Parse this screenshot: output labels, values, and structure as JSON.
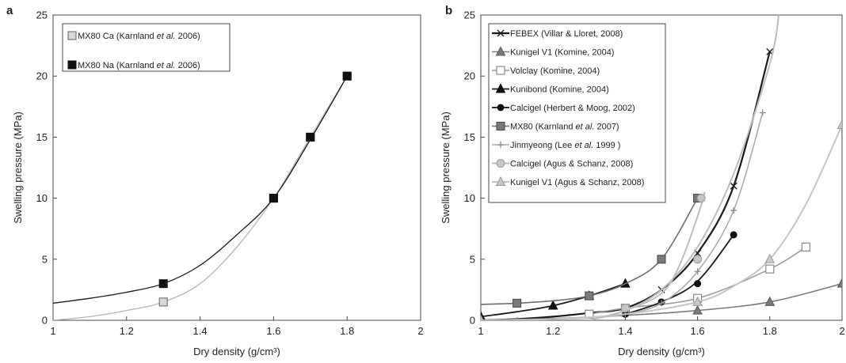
{
  "chart_data": [
    {
      "type": "line",
      "panel_label": "a",
      "xlabel": "Dry density (g/cm³)",
      "ylabel": "Swelling pressure (MPa)",
      "xlim": [
        1,
        2
      ],
      "ylim": [
        0,
        25
      ],
      "x_ticks": [
        1,
        1.2,
        1.4,
        1.6,
        1.8,
        2
      ],
      "y_ticks": [
        0,
        5,
        10,
        15,
        20,
        25
      ],
      "grid": false,
      "legend_position": "top-left",
      "series": [
        {
          "name": "MX80 Ca (Karnland et al. 2006)",
          "legend_parts": [
            "MX80 Ca (Karnland ",
            "et al.",
            " 2006)"
          ],
          "marker": "square-open-gray",
          "color": "#b4b4b4",
          "points": [
            [
              1.3,
              1.5
            ],
            [
              1.6,
              10
            ],
            [
              1.7,
              15
            ],
            [
              1.8,
              20
            ]
          ],
          "fit": [
            [
              1.0,
              0.0
            ],
            [
              1.1,
              0.3
            ],
            [
              1.2,
              0.8
            ],
            [
              1.3,
              1.5
            ],
            [
              1.4,
              3.0
            ],
            [
              1.5,
              6.0
            ],
            [
              1.6,
              10.0
            ],
            [
              1.7,
              15.0
            ],
            [
              1.8,
              20.0
            ]
          ]
        },
        {
          "name": "MX80 Na (Karnland et al. 2006)",
          "legend_parts": [
            "MX80 Na (Karnland ",
            "et al.",
            " 2006)"
          ],
          "marker": "square-filled-black",
          "color": "#1a1a1a",
          "points": [
            [
              1.3,
              3.0
            ],
            [
              1.6,
              10
            ],
            [
              1.7,
              15
            ],
            [
              1.8,
              20
            ]
          ],
          "fit": [
            [
              1.0,
              1.4
            ],
            [
              1.1,
              1.8
            ],
            [
              1.2,
              2.3
            ],
            [
              1.3,
              3.0
            ],
            [
              1.4,
              4.5
            ],
            [
              1.5,
              7.0
            ],
            [
              1.6,
              10.0
            ],
            [
              1.7,
              14.8
            ],
            [
              1.8,
              20.0
            ]
          ]
        }
      ]
    },
    {
      "type": "line",
      "panel_label": "b",
      "xlabel": "Dry density (g/cm³)",
      "ylabel": "Swelling pressure (MPa)",
      "xlim": [
        1,
        2
      ],
      "ylim": [
        0,
        25
      ],
      "x_ticks": [
        1,
        1.2,
        1.4,
        1.6,
        1.8,
        2
      ],
      "y_ticks": [
        0,
        5,
        10,
        15,
        20,
        25
      ],
      "grid": false,
      "legend_position": "top-left",
      "series": [
        {
          "name": "FEBEX (Villar & Lloret, 2008)",
          "legend_parts": [
            "FEBEX (Villar & Lloret, 2008)"
          ],
          "marker": "x",
          "color": "#1a1a1a",
          "width": 2.2,
          "points": [
            [
              1.3,
              0.6
            ],
            [
              1.4,
              1.0
            ],
            [
              1.5,
              2.5
            ],
            [
              1.6,
              5.5
            ],
            [
              1.7,
              11.0
            ],
            [
              1.8,
              22.0
            ]
          ],
          "curve": [
            [
              1.0,
              0.0
            ],
            [
              1.1,
              0.1
            ],
            [
              1.2,
              0.3
            ],
            [
              1.3,
              0.6
            ],
            [
              1.4,
              1.0
            ],
            [
              1.5,
              2.5
            ],
            [
              1.6,
              5.5
            ],
            [
              1.7,
              11.0
            ],
            [
              1.8,
              22.0
            ]
          ]
        },
        {
          "name": "Kunigel V1 (Komine, 2004)",
          "legend_parts": [
            "Kunigel V1 (Komine, 2004)"
          ],
          "marker": "triangle-filled-gray",
          "color": "#7a7a7a",
          "width": 1.6,
          "points": [
            [
              1.0,
              0.0
            ],
            [
              1.6,
              0.8
            ],
            [
              1.8,
              1.5
            ],
            [
              2.0,
              3.0
            ]
          ],
          "curve": [
            [
              1.0,
              0.0
            ],
            [
              1.2,
              0.15
            ],
            [
              1.4,
              0.4
            ],
            [
              1.6,
              0.8
            ],
            [
              1.8,
              1.5
            ],
            [
              2.0,
              3.0
            ]
          ]
        },
        {
          "name": "Volclay (Komine, 2004)",
          "legend_parts": [
            "Volclay (Komine, 2004)"
          ],
          "marker": "square-open",
          "color": "#9a9a9a",
          "width": 1.6,
          "points": [
            [
              1.3,
              0.5
            ],
            [
              1.4,
              1.0
            ],
            [
              1.6,
              1.8
            ],
            [
              1.8,
              4.2
            ],
            [
              1.9,
              6.0
            ]
          ],
          "curve": [
            [
              1.3,
              0.5
            ],
            [
              1.4,
              1.0
            ],
            [
              1.6,
              1.8
            ],
            [
              1.8,
              4.2
            ],
            [
              1.9,
              6.0
            ]
          ]
        },
        {
          "name": "Kunibond (Komine, 2004)",
          "legend_parts": [
            "Kunibond (Komine, 2004)"
          ],
          "marker": "triangle-filled-black",
          "color": "#1a1a1a",
          "width": 1.8,
          "points": [
            [
              1.0,
              0.3
            ],
            [
              1.2,
              1.2
            ],
            [
              1.3,
              2.0
            ],
            [
              1.4,
              3.0
            ]
          ],
          "curve": [
            [
              1.0,
              0.3
            ],
            [
              1.1,
              0.7
            ],
            [
              1.2,
              1.2
            ],
            [
              1.3,
              2.0
            ],
            [
              1.4,
              3.0
            ]
          ]
        },
        {
          "name": "Calcigel (Herbert & Moog, 2002)",
          "legend_parts": [
            "Calcigel (Herbert & Moog, 2002)"
          ],
          "marker": "circle-filled-black",
          "color": "#1a1a1a",
          "width": 1.8,
          "points": [
            [
              1.4,
              0.5
            ],
            [
              1.5,
              1.5
            ],
            [
              1.6,
              3.0
            ],
            [
              1.7,
              7.0
            ]
          ],
          "curve": [
            [
              1.4,
              0.5
            ],
            [
              1.5,
              1.5
            ],
            [
              1.6,
              3.2
            ],
            [
              1.7,
              7.0
            ]
          ]
        },
        {
          "name": "MX80 (Karnland et al. 2007)",
          "legend_parts": [
            "MX80 (Karnland ",
            "et al.",
            " 2007)"
          ],
          "marker": "square-filled-gray",
          "color": "#6e6e6e",
          "width": 1.6,
          "points": [
            [
              1.1,
              1.4
            ],
            [
              1.3,
              2.0
            ],
            [
              1.5,
              5.0
            ],
            [
              1.6,
              10.0
            ]
          ],
          "curve": [
            [
              1.0,
              1.3
            ],
            [
              1.1,
              1.4
            ],
            [
              1.2,
              1.6
            ],
            [
              1.3,
              2.0
            ],
            [
              1.4,
              3.0
            ],
            [
              1.5,
              5.0
            ],
            [
              1.6,
              10.0
            ]
          ]
        },
        {
          "name": "Jinmyeong (Lee et al. 1999 )",
          "legend_parts": [
            "Jinmyeong (Lee ",
            "et al.",
            " 1999 )"
          ],
          "marker": "plus",
          "color": "#aaaaaa",
          "width": 1.6,
          "points": [
            [
              1.1,
              0.0
            ],
            [
              1.4,
              0.5
            ],
            [
              1.5,
              1.4
            ],
            [
              1.6,
              4.0
            ],
            [
              1.7,
              9.0
            ],
            [
              1.78,
              17.0
            ]
          ],
          "curve": [
            [
              1.0,
              0.0
            ],
            [
              1.1,
              0.0
            ],
            [
              1.2,
              0.1
            ],
            [
              1.3,
              0.2
            ],
            [
              1.4,
              0.5
            ],
            [
              1.5,
              1.4
            ],
            [
              1.6,
              4.0
            ],
            [
              1.7,
              9.0
            ],
            [
              1.78,
              17.0
            ]
          ]
        },
        {
          "name": "Calcigel (Agus & Schanz, 2008)",
          "legend_parts": [
            "Calcigel (Agus & Schanz, 2008)"
          ],
          "marker": "circle-filled-lightgray",
          "color": "#bdbdbd",
          "width": 2.0,
          "points": [
            [
              1.4,
              1.0
            ],
            [
              1.6,
              5.0
            ],
            [
              1.61,
              10.0
            ]
          ],
          "curve": [
            [
              1.3,
              0.0
            ],
            [
              1.4,
              0.8
            ],
            [
              1.5,
              2.2
            ],
            [
              1.55,
              4.5
            ],
            [
              1.6,
              8.5
            ],
            [
              1.62,
              10.5
            ]
          ]
        },
        {
          "name": "Kunigel V1 (Agus & Schanz, 2008)",
          "legend_parts": [
            "Kunigel V1 (Agus & Schanz, 2008)"
          ],
          "marker": "triangle-filled-lightgray",
          "color": "#c4c4c4",
          "width": 2.0,
          "points": [
            [
              1.0,
              0.0
            ],
            [
              1.6,
              1.5
            ],
            [
              1.8,
              5.0
            ],
            [
              2.0,
              16.0
            ]
          ],
          "curve": [
            [
              1.0,
              0.0
            ],
            [
              1.2,
              0.1
            ],
            [
              1.4,
              0.5
            ],
            [
              1.6,
              1.5
            ],
            [
              1.7,
              2.8
            ],
            [
              1.8,
              5.0
            ],
            [
              1.9,
              9.5
            ],
            [
              2.0,
              16.0
            ]
          ]
        },
        {
          "name": "",
          "legend_parts": [],
          "marker": "none",
          "color": "#bdbdbd",
          "width": 2.0,
          "points": [],
          "curve": [
            [
              1.3,
              0.0
            ],
            [
              1.4,
              0.8
            ],
            [
              1.5,
              2.5
            ],
            [
              1.6,
              6.0
            ],
            [
              1.7,
              12.0
            ],
            [
              1.8,
              21.0
            ],
            [
              1.825,
              25.0
            ]
          ]
        }
      ]
    }
  ]
}
